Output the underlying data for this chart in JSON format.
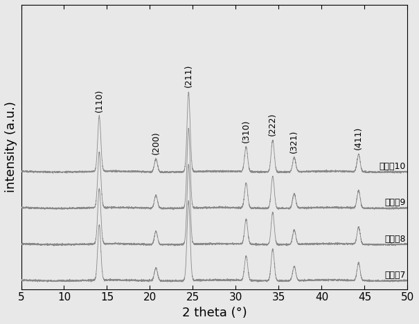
{
  "x_min": 5,
  "x_max": 50,
  "xlabel": "2 theta (°)",
  "ylabel": "intensity (a.u.)",
  "background_color": "#e8e8e8",
  "plot_bg_color": "#e8e8e8",
  "line_color": "#888888",
  "series_labels": [
    "实施內10",
    "实施入9",
    "实施入8",
    "实施入7"
  ],
  "offsets": [
    0.75,
    0.5,
    0.25,
    0.0
  ],
  "peak_positions": [
    14.1,
    20.7,
    24.5,
    31.2,
    34.3,
    36.8,
    44.3
  ],
  "peak_widths": [
    0.18,
    0.18,
    0.18,
    0.18,
    0.18,
    0.18,
    0.18
  ],
  "peak_heights": [
    0.38,
    0.09,
    0.55,
    0.17,
    0.22,
    0.1,
    0.12
  ],
  "miller_labels": [
    "(110)",
    "(200)",
    "(211)",
    "(310)",
    "(222)",
    "(321)",
    "(411)"
  ],
  "miller_angles": [
    14.1,
    20.7,
    24.5,
    31.2,
    34.3,
    36.8,
    44.3
  ],
  "xticks": [
    5,
    10,
    15,
    20,
    25,
    30,
    35,
    40,
    45,
    50
  ],
  "tick_label_fontsize": 11,
  "axis_label_fontsize": 13,
  "miller_fontsize": 9,
  "series_label_fontsize": 9,
  "noise_scale": 0.003,
  "baseline_noise": 0.001
}
